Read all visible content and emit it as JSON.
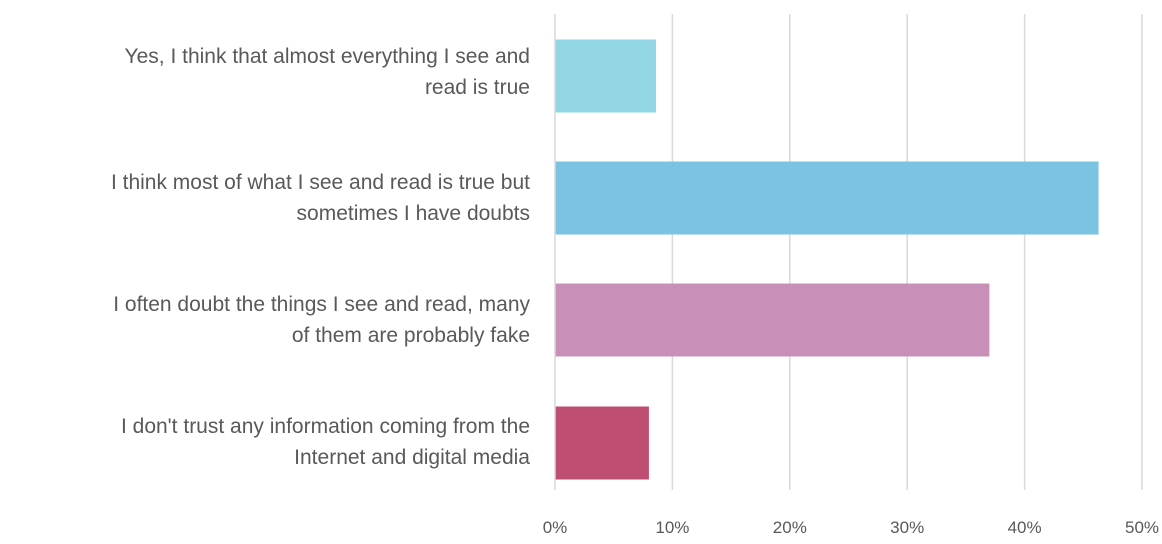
{
  "chart_data": {
    "type": "bar",
    "orientation": "horizontal",
    "categories": [
      "Yes, I think that almost everything I see and read is true",
      "I think most of what I see and read is true but sometimes I have doubts",
      "I often doubt the things I see and read, many of them are probably fake",
      "I don't trust any information coming from the Internet and digital media"
    ],
    "category_lines": [
      [
        "Yes, I think that almost everything I see and",
        "read is true"
      ],
      [
        "I think most of what I see and read is true but",
        "sometimes I have doubts"
      ],
      [
        "I often doubt the things I see and read, many",
        "of them are probably fake"
      ],
      [
        "I don't trust any information coming from the",
        "Internet and digital media"
      ]
    ],
    "values": [
      8.6,
      46.3,
      37.0,
      8.0
    ],
    "colors": [
      "#92d5e3",
      "#7ac3e1",
      "#c890b8",
      "#be4e72"
    ],
    "xlim": [
      0,
      50
    ],
    "xticks": [
      0,
      10,
      20,
      30,
      40,
      50
    ],
    "xtick_labels": [
      "0%",
      "10%",
      "20%",
      "30%",
      "40%",
      "50%"
    ],
    "grid": true,
    "title": "",
    "xlabel": "",
    "ylabel": ""
  }
}
